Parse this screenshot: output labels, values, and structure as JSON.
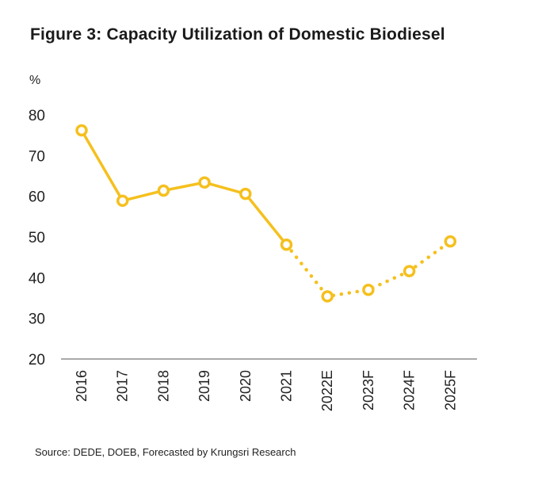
{
  "title": "Figure 3: Capacity Utilization of Domestic Biodiesel",
  "source": "Source: DEDE, DOEB, Forecasted by Krungsri Research",
  "chart_data": {
    "type": "line",
    "title": "Figure 3: Capacity Utilization of Domestic Biodiesel",
    "ylabel": "%",
    "xlabel": "",
    "ylim": [
      20,
      80
    ],
    "yticks": [
      20,
      30,
      40,
      50,
      60,
      70,
      80
    ],
    "categories": [
      "2016",
      "2017",
      "2018",
      "2019",
      "2020",
      "2021",
      "2022E",
      "2023F",
      "2024F",
      "2025F"
    ],
    "values": [
      76.2,
      58.9,
      61.4,
      63.4,
      60.6,
      48.1,
      35.4,
      37.0,
      41.6,
      48.9
    ],
    "actual_through": "2021",
    "forecast_style": "dotted",
    "line_color": "#F5C01E",
    "marker": "hollow-circle",
    "grid": false,
    "legend": "none"
  }
}
